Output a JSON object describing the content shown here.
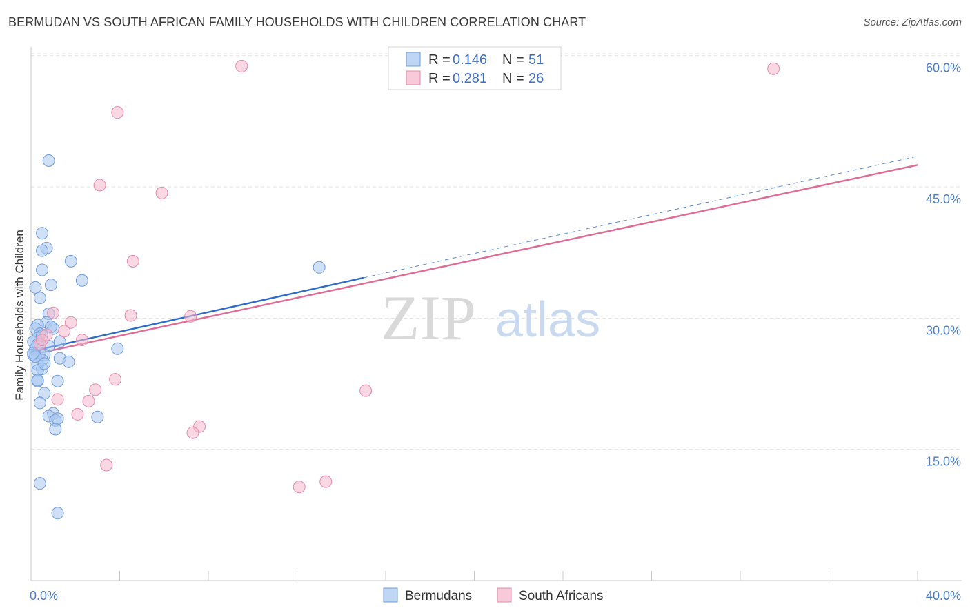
{
  "header": {
    "title": "BERMUDAN VS SOUTH AFRICAN FAMILY HOUSEHOLDS WITH CHILDREN CORRELATION CHART",
    "source": "Source: ZipAtlas.com"
  },
  "watermark": {
    "zip": "ZIP",
    "atlas": "atlas"
  },
  "chart_data": {
    "type": "scatter",
    "title": "BERMUDAN VS SOUTH AFRICAN FAMILY HOUSEHOLDS WITH CHILDREN CORRELATION CHART",
    "xlabel": "",
    "ylabel": "Family Households with Children",
    "xlim": [
      0,
      40
    ],
    "ylim": [
      0,
      61
    ],
    "x_tick_labels": [
      {
        "value": 0,
        "label": "0.0%"
      },
      {
        "value": 40,
        "label": "40.0%"
      }
    ],
    "y_tick_labels": [
      {
        "value": 15,
        "label": "15.0%"
      },
      {
        "value": 30,
        "label": "30.0%"
      },
      {
        "value": 45,
        "label": "45.0%"
      },
      {
        "value": 60,
        "label": "60.0%"
      }
    ],
    "grid": true,
    "legend": {
      "placement": "top-center",
      "entries": [
        {
          "name": "Bermudans",
          "r_label": "R =",
          "r_value": "0.146",
          "n_label": "N =",
          "n_value": "51"
        },
        {
          "name": "South Africans",
          "r_label": "R =",
          "r_value": "0.281",
          "n_label": "N =",
          "n_value": "26"
        }
      ]
    },
    "series": [
      {
        "name": "Bermudans",
        "color": "#a9c8f0",
        "stroke": "#6f9bd8",
        "trend_color": "#2a6bcc",
        "trend": {
          "x0": 0,
          "y0": 26.2,
          "x1": 15,
          "y1": 34.6,
          "dashed_to_x": 40,
          "dashed_to_y": 48.5
        },
        "points": [
          [
            0.8,
            48.0
          ],
          [
            0.5,
            39.7
          ],
          [
            0.7,
            38.0
          ],
          [
            0.5,
            37.7
          ],
          [
            1.8,
            36.5
          ],
          [
            0.5,
            35.5
          ],
          [
            2.3,
            34.3
          ],
          [
            0.9,
            33.8
          ],
          [
            0.2,
            33.5
          ],
          [
            0.4,
            32.3
          ],
          [
            0.8,
            30.5
          ],
          [
            0.7,
            29.5
          ],
          [
            0.3,
            29.2
          ],
          [
            0.2,
            28.8
          ],
          [
            1.0,
            28.8
          ],
          [
            0.4,
            28.2
          ],
          [
            0.3,
            27.7
          ],
          [
            0.1,
            27.3
          ],
          [
            1.3,
            27.3
          ],
          [
            0.8,
            26.8
          ],
          [
            0.2,
            26.5
          ],
          [
            0.4,
            26.0
          ],
          [
            0.1,
            25.8
          ],
          [
            0.6,
            25.8
          ],
          [
            0.5,
            25.2
          ],
          [
            1.3,
            25.4
          ],
          [
            1.7,
            25.0
          ],
          [
            0.3,
            24.7
          ],
          [
            0.5,
            24.2
          ],
          [
            0.3,
            24.0
          ],
          [
            0.3,
            22.8
          ],
          [
            0.3,
            22.9
          ],
          [
            1.2,
            22.8
          ],
          [
            0.6,
            21.4
          ],
          [
            0.4,
            20.3
          ],
          [
            1.0,
            19.1
          ],
          [
            0.8,
            18.8
          ],
          [
            1.1,
            18.3
          ],
          [
            1.2,
            18.5
          ],
          [
            1.1,
            17.3
          ],
          [
            3.0,
            18.7
          ],
          [
            3.9,
            26.5
          ],
          [
            13.0,
            35.8
          ],
          [
            0.4,
            11.1
          ],
          [
            1.2,
            7.7
          ],
          [
            0.2,
            25.6
          ],
          [
            0.6,
            24.8
          ],
          [
            0.3,
            27.0
          ],
          [
            0.9,
            29.0
          ],
          [
            0.1,
            26.0
          ],
          [
            0.5,
            28.0
          ]
        ]
      },
      {
        "name": "South Africans",
        "color": "#f5b8cc",
        "stroke": "#e68aa8",
        "trend_color": "#e06a93",
        "trend": {
          "x0": 0,
          "y0": 25.8,
          "x1": 40,
          "y1": 47.5
        },
        "points": [
          [
            9.5,
            58.8
          ],
          [
            33.5,
            58.5
          ],
          [
            3.9,
            53.5
          ],
          [
            3.1,
            45.2
          ],
          [
            5.9,
            44.3
          ],
          [
            4.6,
            36.5
          ],
          [
            1.0,
            30.6
          ],
          [
            4.5,
            30.3
          ],
          [
            7.2,
            30.2
          ],
          [
            1.8,
            29.5
          ],
          [
            1.5,
            28.5
          ],
          [
            0.7,
            28.1
          ],
          [
            2.3,
            27.5
          ],
          [
            0.4,
            27.0
          ],
          [
            3.8,
            23.0
          ],
          [
            2.9,
            21.8
          ],
          [
            15.1,
            21.7
          ],
          [
            1.2,
            20.7
          ],
          [
            2.6,
            20.5
          ],
          [
            2.1,
            19.0
          ],
          [
            7.6,
            17.6
          ],
          [
            7.3,
            16.9
          ],
          [
            3.4,
            13.2
          ],
          [
            13.3,
            11.3
          ],
          [
            12.1,
            10.7
          ],
          [
            0.5,
            27.5
          ]
        ]
      }
    ]
  }
}
